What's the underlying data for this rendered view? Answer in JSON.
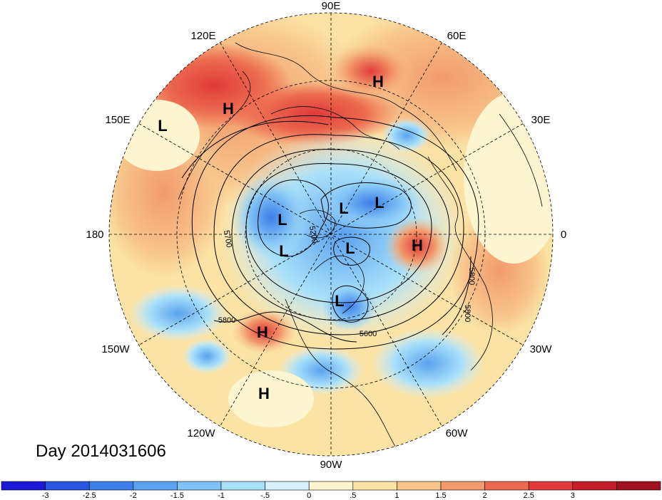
{
  "title": "Day 2014031606",
  "longitude_labels": [
    "90E",
    "60E",
    "30E",
    "0",
    "30W",
    "60W",
    "90W",
    "120W",
    "150W",
    "180",
    "150E",
    "120E"
  ],
  "pressure_systems": [
    {
      "label": "H"
    },
    {
      "label": "H"
    },
    {
      "label": "L"
    },
    {
      "label": "L"
    },
    {
      "label": "L"
    },
    {
      "label": "L"
    },
    {
      "label": "L"
    },
    {
      "label": "H"
    },
    {
      "label": "L"
    },
    {
      "label": "L"
    },
    {
      "label": "H"
    },
    {
      "label": "H"
    }
  ],
  "contour_labels": [
    "5700",
    "5200",
    "5600",
    "5800",
    "5800",
    "5800"
  ],
  "colorbar": {
    "colors": [
      "#1a1ad6",
      "#2a55e0",
      "#3d7ee8",
      "#5aa2ee",
      "#7fc2f5",
      "#a9e0fa",
      "#d6f1fb",
      "#fdf5d0",
      "#fbe3a6",
      "#f7c48a",
      "#f29a6c",
      "#ec6a4f",
      "#e03b3a",
      "#c41e2a",
      "#a0101e"
    ],
    "ticks": [
      "-3",
      "-2.5",
      "-2",
      "-1.5",
      "-1",
      "-.5",
      "0",
      ".5",
      "1",
      "1.5",
      "2",
      "2.5",
      "3"
    ]
  }
}
